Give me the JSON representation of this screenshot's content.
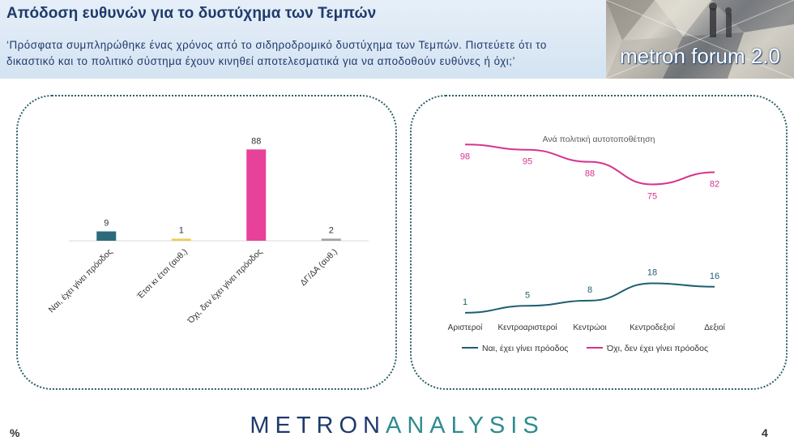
{
  "header": {
    "title": "Απόδοση ευθυνών για το δυστύχημα των Τεμπών",
    "question": "‘Πρόσφατα συμπληρώθηκε ένας χρόνος από το σιδηροδρομικό δυστύχημα των Τεμπών. Πιστεύετε ότι το δικαστικό και το πολιτικό σύστημα έχουν κινηθεί αποτελεσματικά για να αποδοθούν ευθύνες ή όχι;’"
  },
  "logo": {
    "text": "metron forum 2.0"
  },
  "chart_data": [
    {
      "type": "bar",
      "categories": [
        "Ναι, έχει γίνει πρόοδος",
        "Έτσι κι έτσι (αυθ.)",
        "Όχι, δεν έχει γίνει πρόοδος",
        "ΔΓ/ΔΑ (αυθ.)"
      ],
      "values": [
        9,
        1,
        88,
        2
      ],
      "colors": [
        "#2c6a7c",
        "#f2c94c",
        "#e8419a",
        "#a0a0a0"
      ],
      "ylim": [
        0,
        100
      ],
      "grid": false
    },
    {
      "type": "line",
      "title": "Ανά πολιτική αυτοτοποθέτηση",
      "categories": [
        "Αριστεροί",
        "Κεντροαριστεροί",
        "Κεντρώοι",
        "Κεντροδεξιοί",
        "Δεξιοί"
      ],
      "series": [
        {
          "name": "Ναι, έχει γίνει πρόοδος",
          "values": [
            1,
            5,
            8,
            18,
            16
          ],
          "color": "#1f5f6f"
        },
        {
          "name": "Όχι, δεν έχει γίνει πρόοδος",
          "values": [
            98,
            95,
            88,
            75,
            82
          ],
          "color": "#d6338f"
        }
      ],
      "ylim": [
        0,
        100
      ],
      "legend": "bottom",
      "grid": false
    }
  ],
  "footer": {
    "percent_label": "%",
    "brand_part1": "METRON",
    "brand_part2": "ANALYSIS",
    "page_number": "4"
  }
}
